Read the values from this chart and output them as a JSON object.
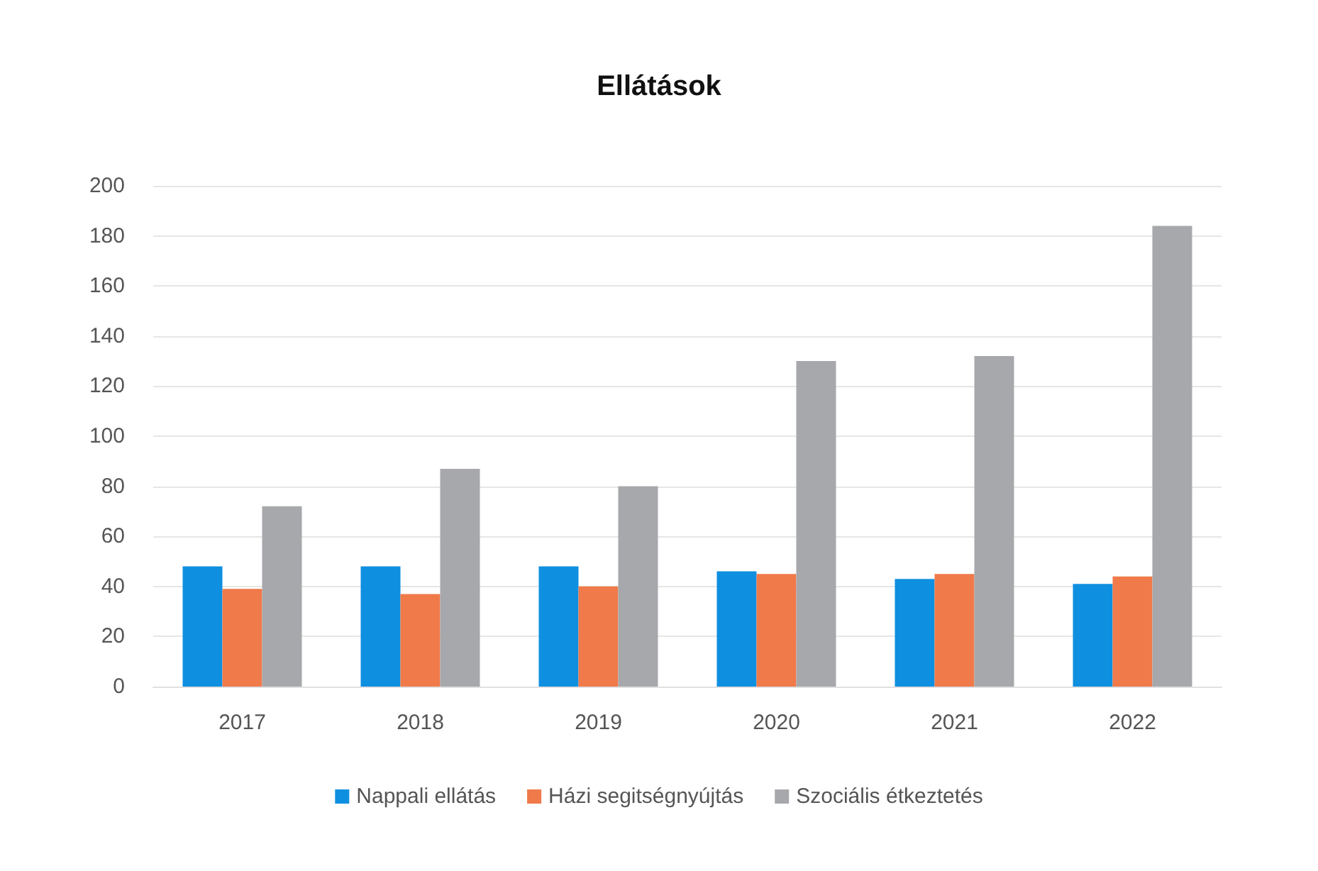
{
  "chart_data": {
    "type": "bar",
    "title": "Ellátások",
    "categories": [
      "2017",
      "2018",
      "2019",
      "2020",
      "2021",
      "2022"
    ],
    "series": [
      {
        "name": "Nappali ellátás",
        "color": "#0f8fe0",
        "values": [
          48,
          48,
          48,
          46,
          43,
          41
        ]
      },
      {
        "name": "Házi segitségnyújtás",
        "color": "#f07a4a",
        "values": [
          39,
          37,
          40,
          45,
          45,
          44
        ]
      },
      {
        "name": "Szociális étkeztetés",
        "color": "#a6a8ab",
        "values": [
          72,
          87,
          80,
          130,
          132,
          184
        ]
      }
    ],
    "ylim": [
      0,
      200
    ],
    "yticks": [
      0,
      20,
      40,
      60,
      80,
      100,
      120,
      140,
      160,
      180,
      200
    ],
    "grid": "y",
    "legend": "bottom"
  }
}
